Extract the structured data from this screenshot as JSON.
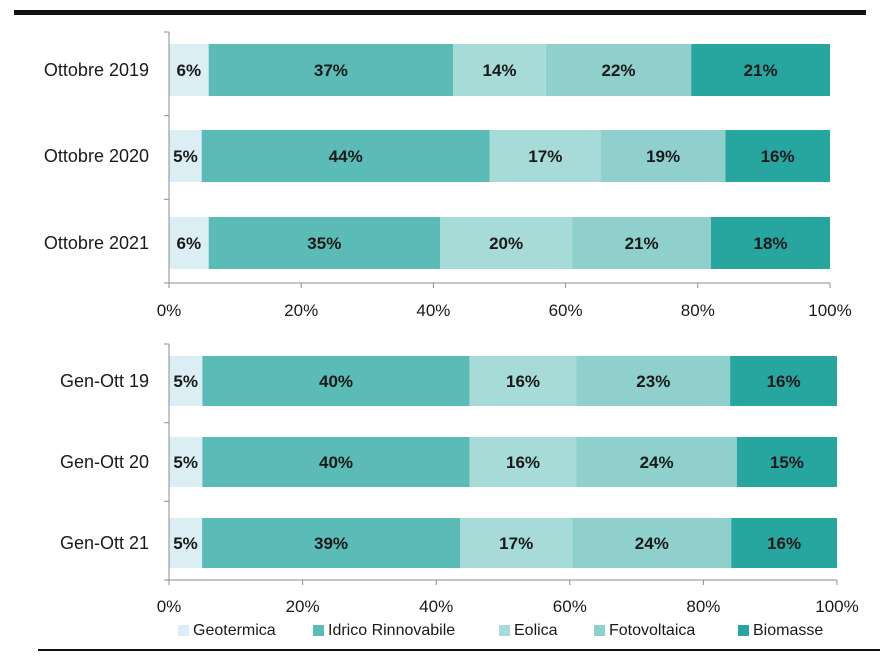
{
  "colors": {
    "Geotermica": "#daeef4",
    "Idrico Rinnovabile": "#5bbbb6",
    "Eolica": "#a6dbd8",
    "Fotovoltaica": "#8fd0cd",
    "Biomasse": "#27a59f"
  },
  "chart_data": [
    {
      "type": "bar",
      "orientation": "horizontal",
      "stacked": "percent",
      "categories": [
        "Ottobre 2019",
        "Ottobre 2020",
        "Ottobre 2021"
      ],
      "series": [
        {
          "name": "Geotermica",
          "values": [
            6,
            5,
            6
          ],
          "labels": [
            "6%",
            "5%",
            "6%"
          ]
        },
        {
          "name": "Idrico Rinnovabile",
          "values": [
            37,
            44,
            35
          ],
          "labels": [
            "37%",
            "44%",
            "35%"
          ]
        },
        {
          "name": "Eolica",
          "values": [
            14,
            17,
            20
          ],
          "labels": [
            "14%",
            "17%",
            "20%"
          ]
        },
        {
          "name": "Fotovoltaica",
          "values": [
            22,
            19,
            21
          ],
          "labels": [
            "22%",
            "19%",
            "21%"
          ]
        },
        {
          "name": "Biomasse",
          "values": [
            21,
            16,
            18
          ],
          "labels": [
            "21%",
            "16%",
            "18%"
          ]
        }
      ],
      "xlim": [
        0,
        100
      ],
      "xticks": [
        "0%",
        "20%",
        "40%",
        "60%",
        "80%",
        "100%"
      ],
      "grid": false
    },
    {
      "type": "bar",
      "orientation": "horizontal",
      "stacked": "percent",
      "categories": [
        "Gen-Ott 19",
        "Gen-Ott 20",
        "Gen-Ott 21"
      ],
      "series": [
        {
          "name": "Geotermica",
          "values": [
            5,
            5,
            5
          ],
          "labels": [
            "5%",
            "5%",
            "5%"
          ]
        },
        {
          "name": "Idrico Rinnovabile",
          "values": [
            40,
            40,
            39
          ],
          "labels": [
            "40%",
            "40%",
            "39%"
          ]
        },
        {
          "name": "Eolica",
          "values": [
            16,
            16,
            17
          ],
          "labels": [
            "16%",
            "16%",
            "17%"
          ]
        },
        {
          "name": "Fotovoltaica",
          "values": [
            23,
            24,
            24
          ],
          "labels": [
            "23%",
            "24%",
            "24%"
          ]
        },
        {
          "name": "Biomasse",
          "values": [
            16,
            15,
            16
          ],
          "labels": [
            "16%",
            "15%",
            "16%"
          ]
        }
      ],
      "xlim": [
        0,
        100
      ],
      "xticks": [
        "0%",
        "20%",
        "40%",
        "60%",
        "80%",
        "100%"
      ],
      "grid": false
    }
  ],
  "legend": {
    "position": "bottom",
    "items": [
      "Geotermica",
      "Idrico Rinnovabile",
      "Eolica",
      "Fotovoltaica",
      "Biomasse"
    ]
  }
}
